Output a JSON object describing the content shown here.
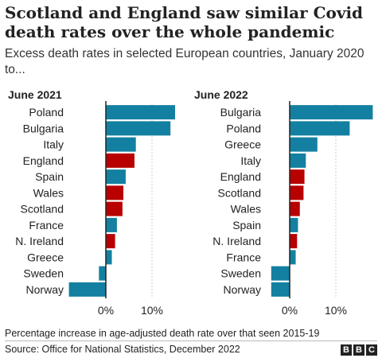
{
  "title": "Scotland and England saw similar Covid death rates over the whole pandemic",
  "subtitle": "Excess death rates in selected European countries, January 2020 to...",
  "footnote": "Percentage increase in age-adjusted death rate over that seen 2015-19",
  "source": "Source: Office for National Statistics, December 2022",
  "logo_letters": [
    "B",
    "B",
    "C"
  ],
  "colors": {
    "uk": "#b80000",
    "other": "#1380a1",
    "gridline": "#cccccc",
    "zero_line": "#222222"
  },
  "chart_data": [
    {
      "type": "bar",
      "orientation": "horizontal",
      "title": "June 2021",
      "categories": [
        "Poland",
        "Bulgaria",
        "Italy",
        "England",
        "Spain",
        "Wales",
        "Scotland",
        "France",
        "N. Ireland",
        "Greece",
        "Sweden",
        "Norway"
      ],
      "values": [
        15,
        14,
        6.5,
        6.2,
        4.3,
        3.8,
        3.6,
        2.4,
        2,
        1.3,
        -1.5,
        -8
      ],
      "highlight": [
        false,
        false,
        false,
        true,
        false,
        true,
        true,
        false,
        true,
        false,
        false,
        false
      ],
      "xticks": [
        0,
        10
      ],
      "xtick_labels": [
        "0%",
        "10%"
      ],
      "xlim": [
        -9,
        17
      ],
      "grid": true
    },
    {
      "type": "bar",
      "orientation": "horizontal",
      "title": "June 2022",
      "categories": [
        "Bulgaria",
        "Poland",
        "Greece",
        "Italy",
        "England",
        "Scotland",
        "Wales",
        "Spain",
        "N. Ireland",
        "France",
        "Sweden",
        "Norway"
      ],
      "values": [
        18,
        13,
        6,
        3.5,
        3.2,
        3,
        2.2,
        1.8,
        1.6,
        1.3,
        -4,
        -4
      ],
      "highlight": [
        false,
        false,
        false,
        false,
        true,
        true,
        true,
        false,
        true,
        false,
        false,
        false
      ],
      "xticks": [
        0,
        10
      ],
      "xtick_labels": [
        "0%",
        "10%"
      ],
      "xlim": [
        -5,
        19
      ],
      "grid": true
    }
  ]
}
